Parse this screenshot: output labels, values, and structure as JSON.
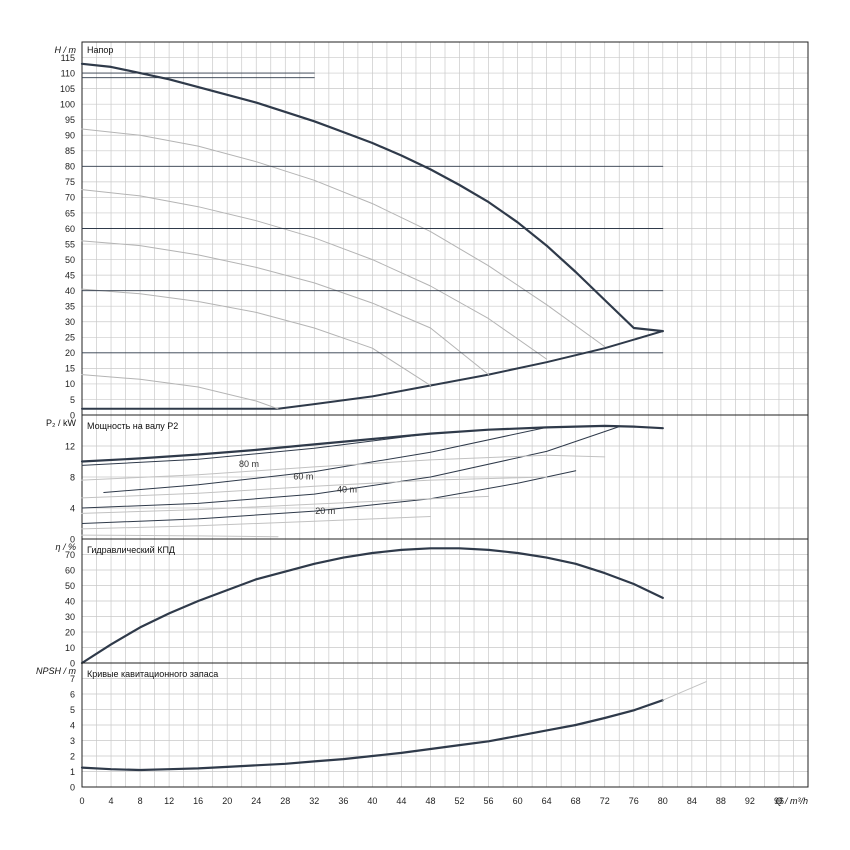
{
  "chart_data": [
    {
      "type": "line",
      "title": "Напор",
      "ylabel": "H / m",
      "xlabel": "Q / m³/h",
      "xlim": [
        0,
        100
      ],
      "ylim": [
        0,
        120
      ],
      "xticks": [
        0,
        4,
        8,
        12,
        16,
        20,
        24,
        28,
        32,
        36,
        40,
        44,
        48,
        52,
        56,
        60,
        64,
        68,
        72,
        76,
        80,
        84,
        88,
        92,
        96
      ],
      "yticks": [
        0,
        5,
        10,
        15,
        20,
        25,
        30,
        35,
        40,
        45,
        50,
        55,
        60,
        65,
        70,
        75,
        80,
        85,
        90,
        95,
        100,
        105,
        110,
        115
      ],
      "grid": true,
      "series": [
        {
          "kind": "max",
          "x": [
            0,
            4,
            8,
            12,
            16,
            20,
            24,
            28,
            32,
            36,
            40,
            44,
            48,
            52,
            56,
            60,
            64,
            68,
            72,
            76,
            80
          ],
          "y": [
            113,
            112,
            110,
            108,
            105.5,
            103,
            100.5,
            97.5,
            94.5,
            91,
            87.5,
            83.5,
            79,
            74,
            68.5,
            62,
            54.5,
            46,
            37,
            28,
            27
          ]
        },
        {
          "kind": "min",
          "x": [
            0,
            8,
            16,
            24,
            27,
            32,
            40,
            48,
            56,
            64,
            72,
            80
          ],
          "y": [
            2,
            2,
            2,
            2,
            2,
            3.5,
            6,
            9.5,
            13,
            17,
            21.5,
            27
          ]
        },
        {
          "kind": "speed",
          "x": [
            0,
            8,
            16,
            24,
            32,
            40,
            48,
            56,
            64,
            72
          ],
          "y": [
            92,
            90,
            86.5,
            81.5,
            75.5,
            68,
            59,
            48,
            35.5,
            22
          ]
        },
        {
          "kind": "speed",
          "x": [
            0,
            8,
            16,
            24,
            32,
            40,
            48,
            56,
            64
          ],
          "y": [
            72.5,
            70.5,
            67,
            62.5,
            57,
            50,
            41.5,
            31,
            18
          ]
        },
        {
          "kind": "speed",
          "x": [
            0,
            8,
            16,
            24,
            32,
            40,
            48,
            56
          ],
          "y": [
            56,
            54.5,
            51.5,
            47.5,
            42.5,
            36,
            28,
            13
          ]
        },
        {
          "kind": "speed",
          "x": [
            0,
            8,
            16,
            24,
            32,
            40,
            48
          ],
          "y": [
            40.5,
            39,
            36.5,
            33,
            28,
            21.5,
            9.5
          ]
        },
        {
          "kind": "speed",
          "x": [
            0,
            8,
            16,
            24,
            27
          ],
          "y": [
            13,
            11.5,
            9,
            4.5,
            2
          ]
        },
        {
          "kind": "hline",
          "x": [
            0,
            32
          ],
          "y": [
            110,
            110
          ]
        },
        {
          "kind": "hline",
          "x": [
            0,
            32
          ],
          "y": [
            108.5,
            108.5
          ]
        },
        {
          "kind": "hline",
          "x": [
            0,
            80
          ],
          "y": [
            80,
            80
          ]
        },
        {
          "kind": "hline",
          "x": [
            0,
            80
          ],
          "y": [
            60,
            60
          ]
        },
        {
          "kind": "hline",
          "x": [
            0,
            80
          ],
          "y": [
            40,
            40
          ]
        },
        {
          "kind": "hline",
          "x": [
            0,
            80
          ],
          "y": [
            20,
            20
          ]
        }
      ]
    },
    {
      "type": "line",
      "title": "Мощность на валу P2",
      "ylabel": "P₂ / kW",
      "xlim": [
        0,
        100
      ],
      "ylim": [
        0,
        16
      ],
      "yticks": [
        0,
        4,
        8,
        12
      ],
      "grid": true,
      "annotations": [
        {
          "text": "80 m",
          "x": 23,
          "y": 9.3
        },
        {
          "text": "60 m",
          "x": 30.5,
          "y": 7.7
        },
        {
          "text": "40 m",
          "x": 36.5,
          "y": 6.0
        },
        {
          "text": "20 m",
          "x": 33.5,
          "y": 3.2
        }
      ],
      "series": [
        {
          "kind": "max",
          "x": [
            0,
            8,
            16,
            24,
            32,
            40,
            48,
            56,
            64,
            72,
            76,
            80
          ],
          "y": [
            10,
            10.4,
            10.9,
            11.5,
            12.2,
            12.9,
            13.6,
            14.1,
            14.4,
            14.6,
            14.5,
            14.3
          ]
        },
        {
          "kind": "sys",
          "x": [
            0,
            16,
            32,
            48
          ],
          "y": [
            9.5,
            10.3,
            11.7,
            13.6
          ]
        },
        {
          "kind": "sys",
          "x": [
            3,
            16,
            32,
            48,
            64
          ],
          "y": [
            6,
            7,
            8.7,
            11.2,
            14.4
          ]
        },
        {
          "kind": "sys",
          "x": [
            0,
            16,
            32,
            48,
            64,
            74
          ],
          "y": [
            4,
            4.6,
            5.8,
            8,
            11.3,
            14.5
          ]
        },
        {
          "kind": "sys",
          "x": [
            0,
            16,
            32,
            48,
            60,
            68
          ],
          "y": [
            2,
            2.6,
            3.6,
            5.2,
            7.2,
            8.8
          ]
        },
        {
          "kind": "gray",
          "x": [
            0,
            16,
            32,
            48,
            64,
            72
          ],
          "y": [
            7.6,
            8.3,
            9.3,
            10.2,
            10.8,
            10.6
          ]
        },
        {
          "kind": "gray",
          "x": [
            0,
            16,
            32,
            48,
            64
          ],
          "y": [
            5.3,
            5.9,
            6.8,
            7.6,
            8
          ]
        },
        {
          "kind": "gray",
          "x": [
            0,
            16,
            32,
            48,
            56
          ],
          "y": [
            3.3,
            3.8,
            4.5,
            5.2,
            5.5
          ]
        },
        {
          "kind": "gray",
          "x": [
            0,
            16,
            32,
            48
          ],
          "y": [
            1.3,
            1.7,
            2.3,
            2.9
          ]
        },
        {
          "kind": "gray",
          "x": [
            0,
            16,
            27
          ],
          "y": [
            0.5,
            0.4,
            0.3
          ]
        }
      ]
    },
    {
      "type": "line",
      "title": "Гидравлический КПД",
      "ylabel": "η / %",
      "xlim": [
        0,
        100
      ],
      "ylim": [
        0,
        80
      ],
      "yticks": [
        0,
        10,
        20,
        30,
        40,
        50,
        60,
        70
      ],
      "grid": true,
      "series": [
        {
          "kind": "max",
          "x": [
            0,
            4,
            8,
            12,
            16,
            20,
            24,
            28,
            32,
            36,
            40,
            44,
            48,
            52,
            56,
            60,
            64,
            68,
            72,
            76,
            80
          ],
          "y": [
            0,
            12,
            23,
            32,
            40,
            47,
            54,
            59,
            64,
            68,
            71,
            73,
            74,
            74,
            73,
            71,
            68,
            64,
            58,
            51,
            42
          ]
        }
      ]
    },
    {
      "type": "line",
      "title": "Кривые кавитационного запаса",
      "ylabel": "NPSH / m",
      "xlim": [
        0,
        100
      ],
      "ylim": [
        0,
        8
      ],
      "yticks": [
        0,
        1,
        2,
        3,
        4,
        5,
        6,
        7
      ],
      "grid": true,
      "series": [
        {
          "kind": "max",
          "x": [
            0,
            4,
            8,
            12,
            16,
            20,
            24,
            28,
            32,
            36,
            40,
            44,
            48,
            52,
            56,
            60,
            64,
            68,
            72,
            76,
            80
          ],
          "y": [
            1.25,
            1.15,
            1.1,
            1.15,
            1.2,
            1.3,
            1.4,
            1.5,
            1.65,
            1.8,
            2,
            2.2,
            2.45,
            2.7,
            2.95,
            3.3,
            3.65,
            4,
            4.45,
            4.95,
            5.6
          ]
        },
        {
          "kind": "gray",
          "x": [
            80,
            86
          ],
          "y": [
            5.6,
            6.8
          ]
        }
      ]
    }
  ]
}
